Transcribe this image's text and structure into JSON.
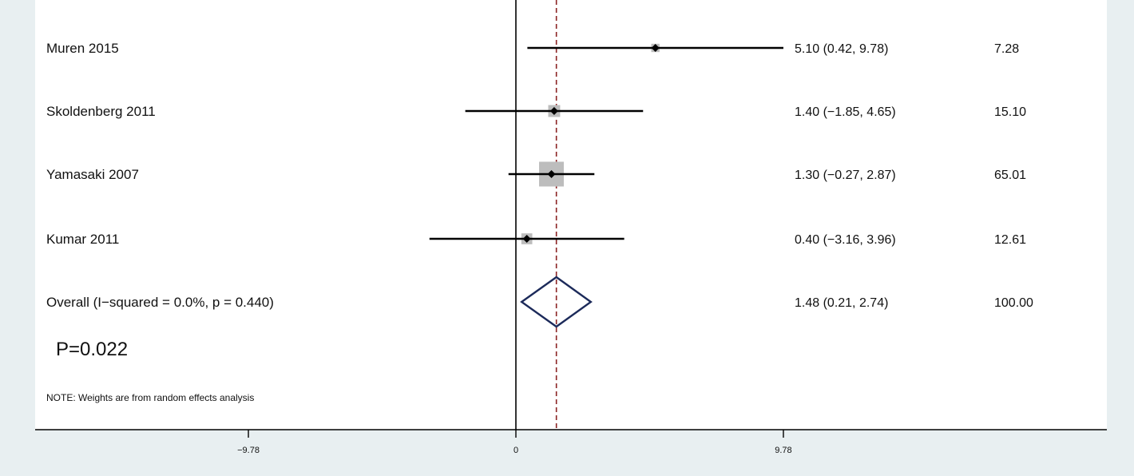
{
  "chart_data": {
    "type": "forest",
    "studies": [
      {
        "label": "Muren 2015",
        "estimate": 5.1,
        "ci": [
          0.42,
          9.78
        ],
        "effect_text": "5.10 (0.42, 9.78)",
        "weight": 7.28,
        "weight_text": "7.28"
      },
      {
        "label": "Skoldenberg 2011",
        "estimate": 1.4,
        "ci": [
          -1.85,
          4.65
        ],
        "effect_text": "1.40 (−1.85, 4.65)",
        "weight": 15.1,
        "weight_text": "15.10"
      },
      {
        "label": "Yamasaki 2007",
        "estimate": 1.3,
        "ci": [
          -0.27,
          2.87
        ],
        "effect_text": "1.30 (−0.27, 2.87)",
        "weight": 65.01,
        "weight_text": "65.01"
      },
      {
        "label": "Kumar 2011",
        "estimate": 0.4,
        "ci": [
          -3.16,
          3.96
        ],
        "effect_text": "0.40 (−3.16, 3.96)",
        "weight": 12.61,
        "weight_text": "12.61"
      }
    ],
    "overall": {
      "label": "Overall  (I−squared = 0.0%, p = 0.440)",
      "estimate": 1.48,
      "ci": [
        0.21,
        2.74
      ],
      "effect_text": "1.48 (0.21, 2.74)",
      "weight_text": "100.00"
    },
    "annotation": "P=0.022",
    "note": "NOTE: Weights are from random effects analysis",
    "x_ticks": [
      {
        "value": -9.78,
        "label": "−9.78"
      },
      {
        "value": 0,
        "label": "0"
      },
      {
        "value": 9.78,
        "label": "9.78"
      }
    ],
    "xlim": [
      -19.56,
      19.56
    ],
    "null_line": 0,
    "colors": {
      "background": "#e8eff1",
      "panel": "#ffffff",
      "weight_box": "#bdbdbd",
      "overall_diamond": "#1c2a5a",
      "overall_line": "#8b2323"
    }
  }
}
